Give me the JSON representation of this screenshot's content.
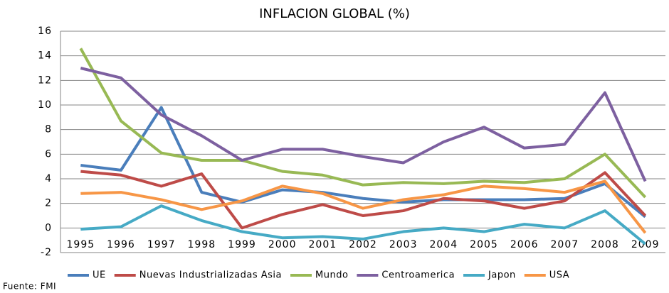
{
  "chart_data": {
    "type": "line",
    "title": "INFLACION GLOBAL (%)",
    "source": "Fuente: FMI",
    "categories": [
      "1995",
      "1996",
      "1997",
      "1998",
      "1999",
      "2000",
      "2001",
      "2002",
      "2003",
      "2004",
      "2005",
      "2006",
      "2007",
      "2008",
      "2009"
    ],
    "ylim": [
      -2,
      16
    ],
    "yticks": [
      -2,
      0,
      2,
      4,
      6,
      8,
      10,
      12,
      14,
      16
    ],
    "grid": true,
    "legend": "bottom",
    "series": [
      {
        "name": "UE",
        "color": "#4a7ebb",
        "values": [
          5.1,
          4.7,
          9.8,
          2.9,
          2.1,
          3.1,
          2.9,
          2.4,
          2.1,
          2.3,
          2.3,
          2.3,
          2.4,
          3.6,
          0.9
        ]
      },
      {
        "name": "Nuevas Industrializadas Asia",
        "color": "#be4b48",
        "values": [
          4.6,
          4.3,
          3.4,
          4.4,
          0.0,
          1.1,
          1.9,
          1.0,
          1.4,
          2.4,
          2.2,
          1.6,
          2.2,
          4.5,
          1.0
        ]
      },
      {
        "name": "Mundo",
        "color": "#98b954",
        "values": [
          14.6,
          8.7,
          6.1,
          5.5,
          5.5,
          4.6,
          4.3,
          3.5,
          3.7,
          3.6,
          3.8,
          3.7,
          4.0,
          6.0,
          2.5
        ]
      },
      {
        "name": "Centroamerica",
        "color": "#7d60a0",
        "values": [
          13.0,
          12.2,
          9.2,
          7.5,
          5.5,
          6.4,
          6.4,
          5.8,
          5.3,
          7.0,
          8.2,
          6.5,
          6.8,
          11.0,
          3.8
        ]
      },
      {
        "name": "Japon",
        "color": "#46aac5",
        "values": [
          -0.1,
          0.1,
          1.8,
          0.6,
          -0.3,
          -0.8,
          -0.7,
          -0.9,
          -0.3,
          0.0,
          -0.3,
          0.3,
          0.0,
          1.4,
          -1.3
        ]
      },
      {
        "name": "USA",
        "color": "#f79646",
        "values": [
          2.8,
          2.9,
          2.3,
          1.5,
          2.2,
          3.4,
          2.8,
          1.6,
          2.3,
          2.7,
          3.4,
          3.2,
          2.9,
          3.8,
          -0.4
        ]
      }
    ]
  }
}
